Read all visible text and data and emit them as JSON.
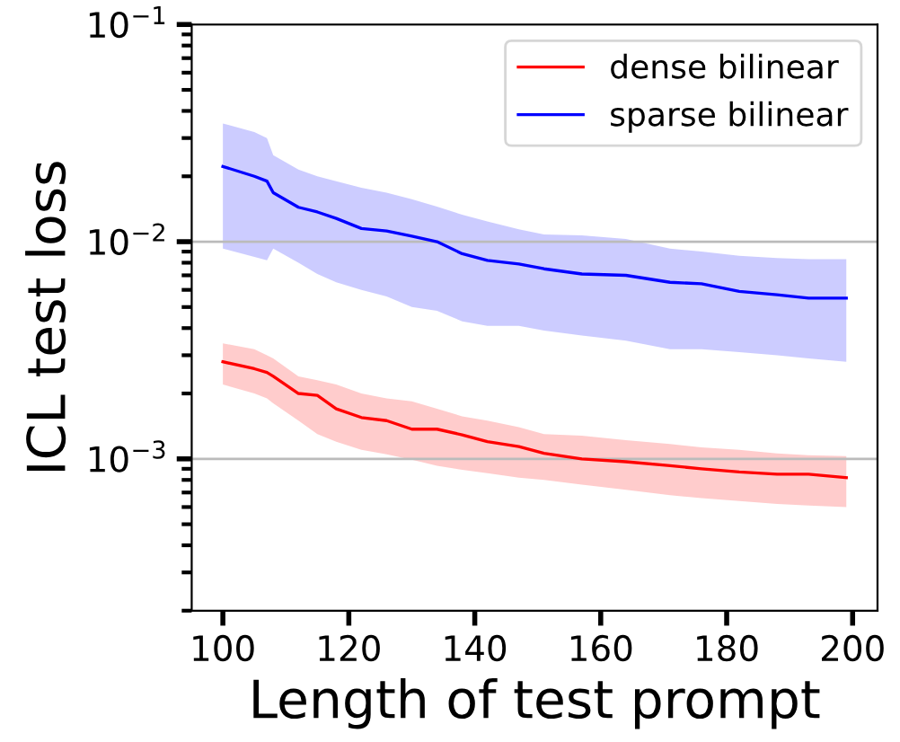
{
  "chart_data": {
    "type": "line",
    "xlabel": "Length of test prompt",
    "ylabel": "ICL test loss",
    "log": "y",
    "grid": "y",
    "legend": "top right",
    "line_style": "solid",
    "marker": "none",
    "x": [
      100,
      105,
      107,
      108,
      112,
      115,
      118,
      122,
      126,
      130,
      134,
      138,
      142,
      147,
      151,
      157,
      164,
      171,
      176,
      182,
      188,
      193,
      199
    ],
    "xlim": [
      95.05,
      203.95
    ],
    "xticks": [
      100,
      120,
      140,
      160,
      180,
      200
    ],
    "ylim": [
      0.0002,
      0.1
    ],
    "yticks": [
      {
        "value": 0.001,
        "label": "10$^{−3}$"
      },
      {
        "value": 0.01,
        "label": "10$^{−2}$"
      },
      {
        "value": 0.1,
        "label": "10$^{−1}$"
      }
    ],
    "series": [
      {
        "name": "dense bilinear",
        "color": "#ff0000",
        "values": [
          0.0028,
          0.0026,
          0.0025,
          0.0024,
          0.002,
          0.00196,
          0.0017,
          0.00155,
          0.0015,
          0.00137,
          0.00137,
          0.00129,
          0.0012,
          0.00114,
          0.00106,
          0.001,
          0.00097,
          0.00093,
          0.0009,
          0.00087,
          0.00085,
          0.00085,
          0.00082
        ],
        "lower": [
          0.0022,
          0.002,
          0.0019,
          0.0018,
          0.0015,
          0.0013,
          0.0012,
          0.0011,
          0.00105,
          0.00099,
          0.00093,
          0.00089,
          0.00086,
          0.00082,
          0.0008,
          0.00076,
          0.00072,
          0.00068,
          0.00066,
          0.00064,
          0.00062,
          0.00061,
          0.0006
        ],
        "upper": [
          0.0034,
          0.0032,
          0.003,
          0.0029,
          0.0024,
          0.0023,
          0.0022,
          0.002,
          0.0019,
          0.00184,
          0.0017,
          0.00157,
          0.0015,
          0.0014,
          0.0013,
          0.00128,
          0.00122,
          0.00117,
          0.00113,
          0.0011,
          0.00106,
          0.00104,
          0.00103
        ]
      },
      {
        "name": "sparse bilinear",
        "color": "#0000ff",
        "values": [
          0.0222,
          0.02,
          0.019,
          0.0168,
          0.0144,
          0.0137,
          0.0128,
          0.0115,
          0.0112,
          0.0106,
          0.01,
          0.0088,
          0.0082,
          0.0079,
          0.0075,
          0.0071,
          0.007,
          0.0065,
          0.0064,
          0.0059,
          0.0057,
          0.0055,
          0.0055
        ],
        "lower": [
          0.0093,
          0.0085,
          0.0082,
          0.0093,
          0.008,
          0.0071,
          0.0065,
          0.006,
          0.0056,
          0.005,
          0.0048,
          0.0043,
          0.0041,
          0.0041,
          0.0039,
          0.0037,
          0.0035,
          0.0032,
          0.0032,
          0.0031,
          0.003,
          0.0029,
          0.0028
        ],
        "upper": [
          0.035,
          0.032,
          0.03,
          0.025,
          0.0215,
          0.02,
          0.019,
          0.0177,
          0.0168,
          0.0157,
          0.0145,
          0.0133,
          0.0124,
          0.0114,
          0.0108,
          0.0107,
          0.0103,
          0.0093,
          0.009,
          0.0086,
          0.0084,
          0.0083,
          0.0083
        ]
      }
    ]
  }
}
